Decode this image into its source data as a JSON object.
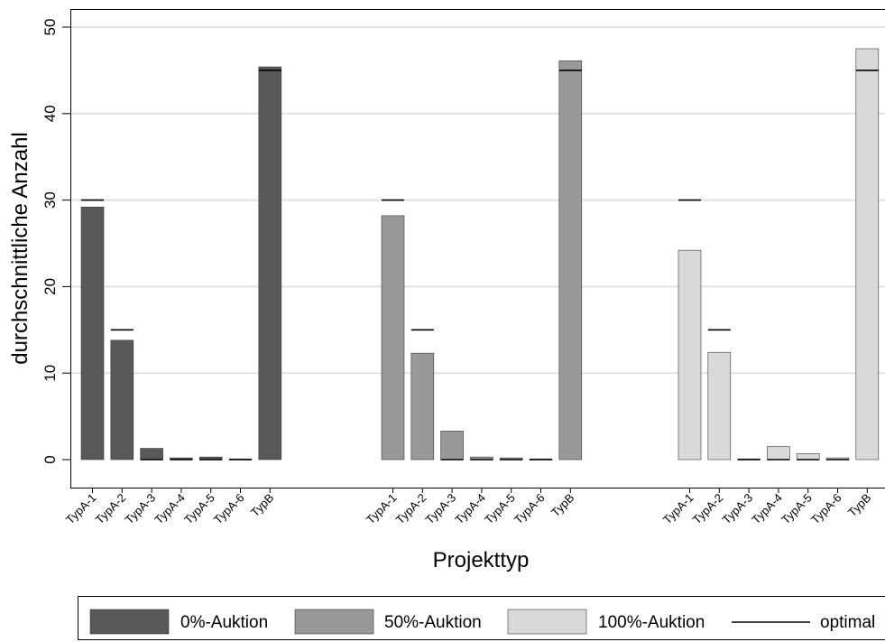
{
  "chart_data": {
    "type": "bar",
    "ylabel": "durchschnittliche Anzahl",
    "xlabel": "Projekttyp",
    "ylim": [
      0,
      52
    ],
    "yticks": [
      0,
      10,
      20,
      30,
      40,
      50
    ],
    "grid": true,
    "legend_position": "bottom",
    "categories": [
      "TypA-1",
      "TypA-2",
      "TypA-3",
      "TypA-4",
      "TypA-5",
      "TypA-6",
      "TypB"
    ],
    "series": [
      {
        "name": "0%-Auktion",
        "color": "#595959",
        "values": [
          29.2,
          13.8,
          1.3,
          0.2,
          0.3,
          0.05,
          45.4
        ]
      },
      {
        "name": "50%-Auktion",
        "color": "#999999",
        "values": [
          28.2,
          12.3,
          3.3,
          0.3,
          0.2,
          0.05,
          46.1
        ]
      },
      {
        "name": "100%-Auktion",
        "color": "#d9d9d9",
        "values": [
          24.2,
          12.4,
          0.05,
          1.5,
          0.7,
          0.2,
          47.5
        ]
      }
    ],
    "optimal": {
      "name": "optimal",
      "color": "#000000",
      "values": [
        30,
        15,
        0,
        0,
        0,
        0,
        45
      ]
    }
  }
}
